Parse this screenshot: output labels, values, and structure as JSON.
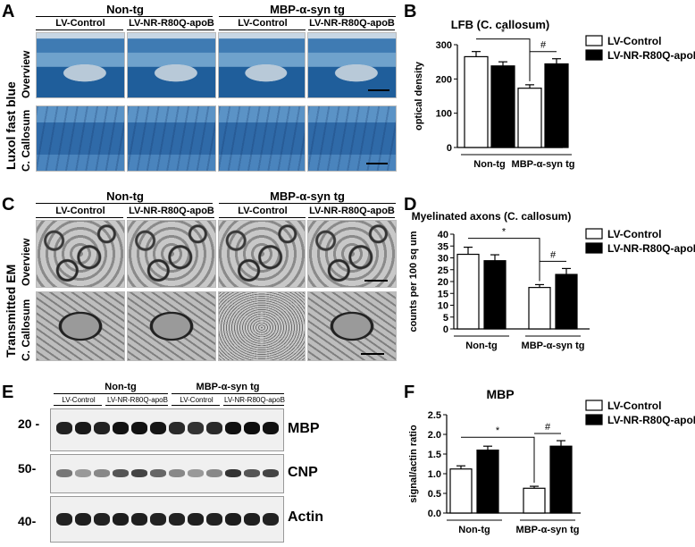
{
  "panels": {
    "A": {
      "letter": "A",
      "group_left": "Non-tg",
      "group_right": "MBP-α-syn tg",
      "cols": [
        "LV-Control",
        "LV-NR-R80Q-apoB",
        "LV-Control",
        "LV-NR-R80Q-apoB"
      ],
      "stain_label": "Luxol fast blue",
      "row_labels": [
        "Overview",
        "C. Callosum"
      ]
    },
    "C": {
      "letter": "C",
      "group_left": "Non-tg",
      "group_right": "MBP-α-syn tg",
      "cols": [
        "LV-Control",
        "LV-NR-R80Q-apoB",
        "LV-Control",
        "LV-NR-R80Q-apoB"
      ],
      "method_label": "Transmitted EM",
      "row_labels": [
        "Overview",
        "C. Callosum"
      ]
    },
    "E": {
      "letter": "E",
      "group_left": "Non-tg",
      "group_right": "MBP-α-syn tg",
      "cols": [
        "LV-Control",
        "LV-NR-R80Q-apoB",
        "LV-Control",
        "LV-NR-R80Q-apoB"
      ],
      "markers": [
        "20 -",
        "50-",
        "40-"
      ],
      "bands": [
        "MBP",
        "CNP",
        "Actin"
      ]
    }
  },
  "chart_data": [
    {
      "panel": "B",
      "type": "bar",
      "title": "LFB (C. callosum)",
      "ylabel": "optical density",
      "categories": [
        "Non-tg",
        "MBP-α-syn tg"
      ],
      "ylim": [
        0,
        300
      ],
      "yticks": [
        0,
        100,
        200,
        300
      ],
      "series": [
        {
          "name": "LV-Control",
          "color": "#ffffff",
          "values": [
            265,
            173
          ],
          "errors": [
            15,
            10
          ]
        },
        {
          "name": "LV-NR-R80Q-apoB",
          "color": "#000000",
          "values": [
            238,
            244
          ],
          "errors": [
            12,
            15
          ]
        }
      ],
      "sig": [
        "*",
        "#"
      ],
      "legend": "top-right"
    },
    {
      "panel": "D",
      "type": "bar",
      "title": "Myelinated axons (C. callosum)",
      "ylabel": "counts per 100 sq um",
      "categories": [
        "Non-tg",
        "MBP-α-syn tg"
      ],
      "ylim": [
        0,
        40
      ],
      "yticks": [
        0,
        5,
        10,
        15,
        20,
        25,
        30,
        35,
        40
      ],
      "series": [
        {
          "name": "LV-Control",
          "color": "#ffffff",
          "values": [
            31.5,
            17.5
          ],
          "errors": [
            3,
            1.2
          ]
        },
        {
          "name": "LV-NR-R80Q-apoB",
          "color": "#000000",
          "values": [
            28.8,
            23
          ],
          "errors": [
            2.5,
            2.5
          ]
        }
      ],
      "sig": [
        "*",
        "#"
      ],
      "legend": "top-right"
    },
    {
      "panel": "F",
      "type": "bar",
      "title": "MBP",
      "ylabel": "signal/actin ratio",
      "categories": [
        "Non-tg",
        "MBP-α-syn tg"
      ],
      "ylim": [
        0,
        2.5
      ],
      "yticks": [
        0.0,
        0.5,
        1.0,
        1.5,
        2.0,
        2.5
      ],
      "yticklabels": [
        "0.0",
        "0.5",
        "1.0",
        "1.5",
        "2.0",
        "2.5"
      ],
      "series": [
        {
          "name": "LV-Control",
          "color": "#ffffff",
          "values": [
            1.12,
            0.63
          ],
          "errors": [
            0.08,
            0.05
          ]
        },
        {
          "name": "LV-NR-R80Q-apoB",
          "color": "#000000",
          "values": [
            1.6,
            1.7
          ],
          "errors": [
            0.1,
            0.14
          ]
        }
      ],
      "sig": [
        "*",
        "#"
      ],
      "legend": "top-right"
    }
  ]
}
